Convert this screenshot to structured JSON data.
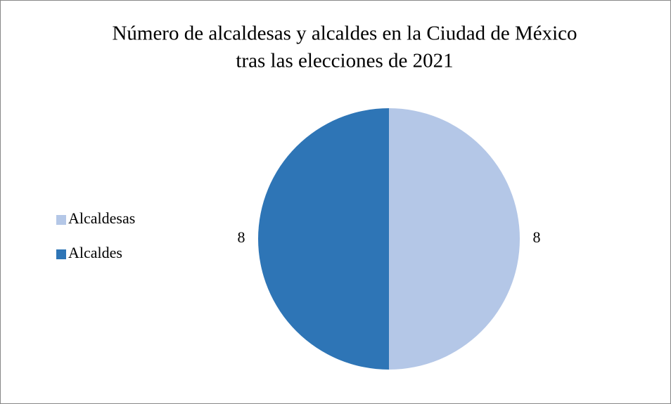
{
  "chart_data": {
    "type": "pie",
    "title": [
      "Número de alcaldesas y alcaldes en la Ciudad de México",
      "tras las elecciones de 2021"
    ],
    "categories": [
      "Alcaldesas",
      "Alcaldes"
    ],
    "values": [
      8,
      8
    ],
    "colors": [
      "#b4c7e7",
      "#2e75b6"
    ],
    "legend": "left"
  }
}
